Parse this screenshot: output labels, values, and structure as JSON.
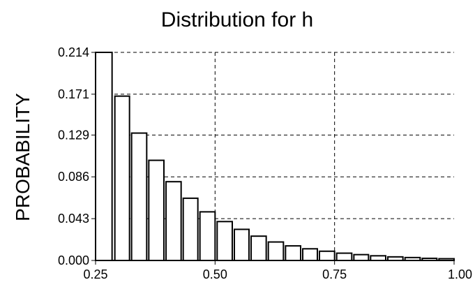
{
  "chart_data": {
    "type": "bar",
    "title": "Distribution for h",
    "xlabel": "",
    "ylabel": "PROBABILITY",
    "xlim": [
      0.25,
      1.0
    ],
    "ylim": [
      0.0,
      0.214
    ],
    "x_ticks": [
      "0.25",
      "0.50",
      "0.75",
      "1.00"
    ],
    "y_ticks": [
      "0.000",
      "0.043",
      "0.086",
      "0.129",
      "0.171",
      "0.214"
    ],
    "grid": true,
    "grid_style": "dashed",
    "bar_fill": "#ffffff",
    "bar_stroke": "#000000",
    "bins": [
      {
        "x0": 0.25,
        "x1": 0.286,
        "value": 0.214
      },
      {
        "x0": 0.286,
        "x1": 0.321,
        "value": 0.169
      },
      {
        "x0": 0.321,
        "x1": 0.357,
        "value": 0.131
      },
      {
        "x0": 0.357,
        "x1": 0.393,
        "value": 0.103
      },
      {
        "x0": 0.393,
        "x1": 0.429,
        "value": 0.081
      },
      {
        "x0": 0.429,
        "x1": 0.464,
        "value": 0.064
      },
      {
        "x0": 0.464,
        "x1": 0.5,
        "value": 0.05
      },
      {
        "x0": 0.5,
        "x1": 0.536,
        "value": 0.04
      },
      {
        "x0": 0.536,
        "x1": 0.571,
        "value": 0.032
      },
      {
        "x0": 0.571,
        "x1": 0.607,
        "value": 0.025
      },
      {
        "x0": 0.607,
        "x1": 0.643,
        "value": 0.019
      },
      {
        "x0": 0.643,
        "x1": 0.679,
        "value": 0.015
      },
      {
        "x0": 0.679,
        "x1": 0.714,
        "value": 0.012
      },
      {
        "x0": 0.714,
        "x1": 0.75,
        "value": 0.0095
      },
      {
        "x0": 0.75,
        "x1": 0.786,
        "value": 0.0075
      },
      {
        "x0": 0.786,
        "x1": 0.821,
        "value": 0.006
      },
      {
        "x0": 0.821,
        "x1": 0.857,
        "value": 0.0048
      },
      {
        "x0": 0.857,
        "x1": 0.893,
        "value": 0.0037
      },
      {
        "x0": 0.893,
        "x1": 0.929,
        "value": 0.003
      },
      {
        "x0": 0.929,
        "x1": 0.964,
        "value": 0.0022
      },
      {
        "x0": 0.964,
        "x1": 1.0,
        "value": 0.0018
      }
    ]
  }
}
